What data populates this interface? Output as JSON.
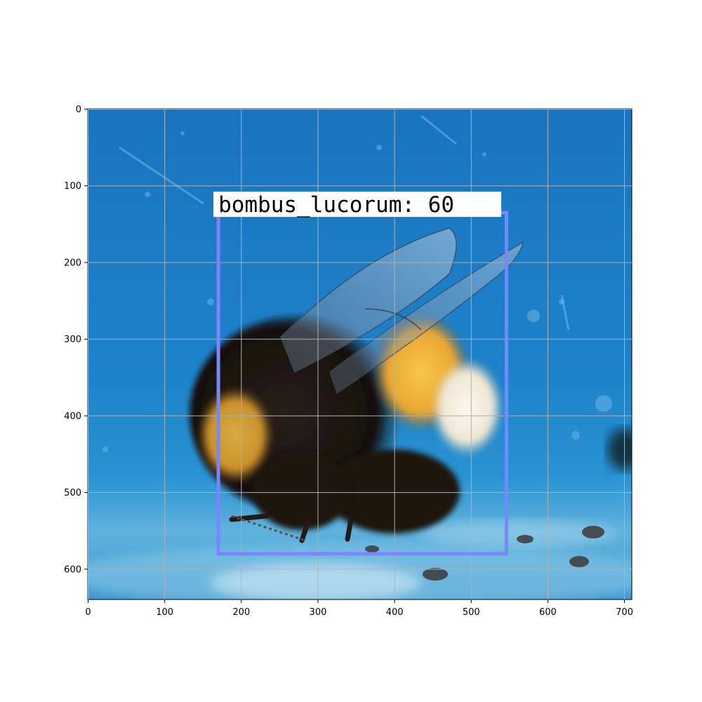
{
  "image": {
    "subject": "bumblebee on blue surface",
    "x_range": [
      0,
      710
    ],
    "y_range": [
      0,
      640
    ]
  },
  "axes": {
    "x_ticks": [
      "0",
      "100",
      "200",
      "300",
      "400",
      "500",
      "600",
      "700"
    ],
    "y_ticks": [
      "0",
      "100",
      "200",
      "300",
      "400",
      "500",
      "600"
    ],
    "grid": true
  },
  "detection": {
    "label": "bombus_lucorum: 60",
    "box": {
      "x0": 170,
      "y0": 135,
      "x1": 546,
      "y1": 580
    },
    "box_color": "#7a86ff"
  },
  "colors": {
    "background_blue": "#1e7fc8",
    "light_blue": "#7fc7e6",
    "bee_dark": "#1c1512",
    "bee_yellow": "#f2b83a",
    "bee_tail": "#f3efe6"
  }
}
